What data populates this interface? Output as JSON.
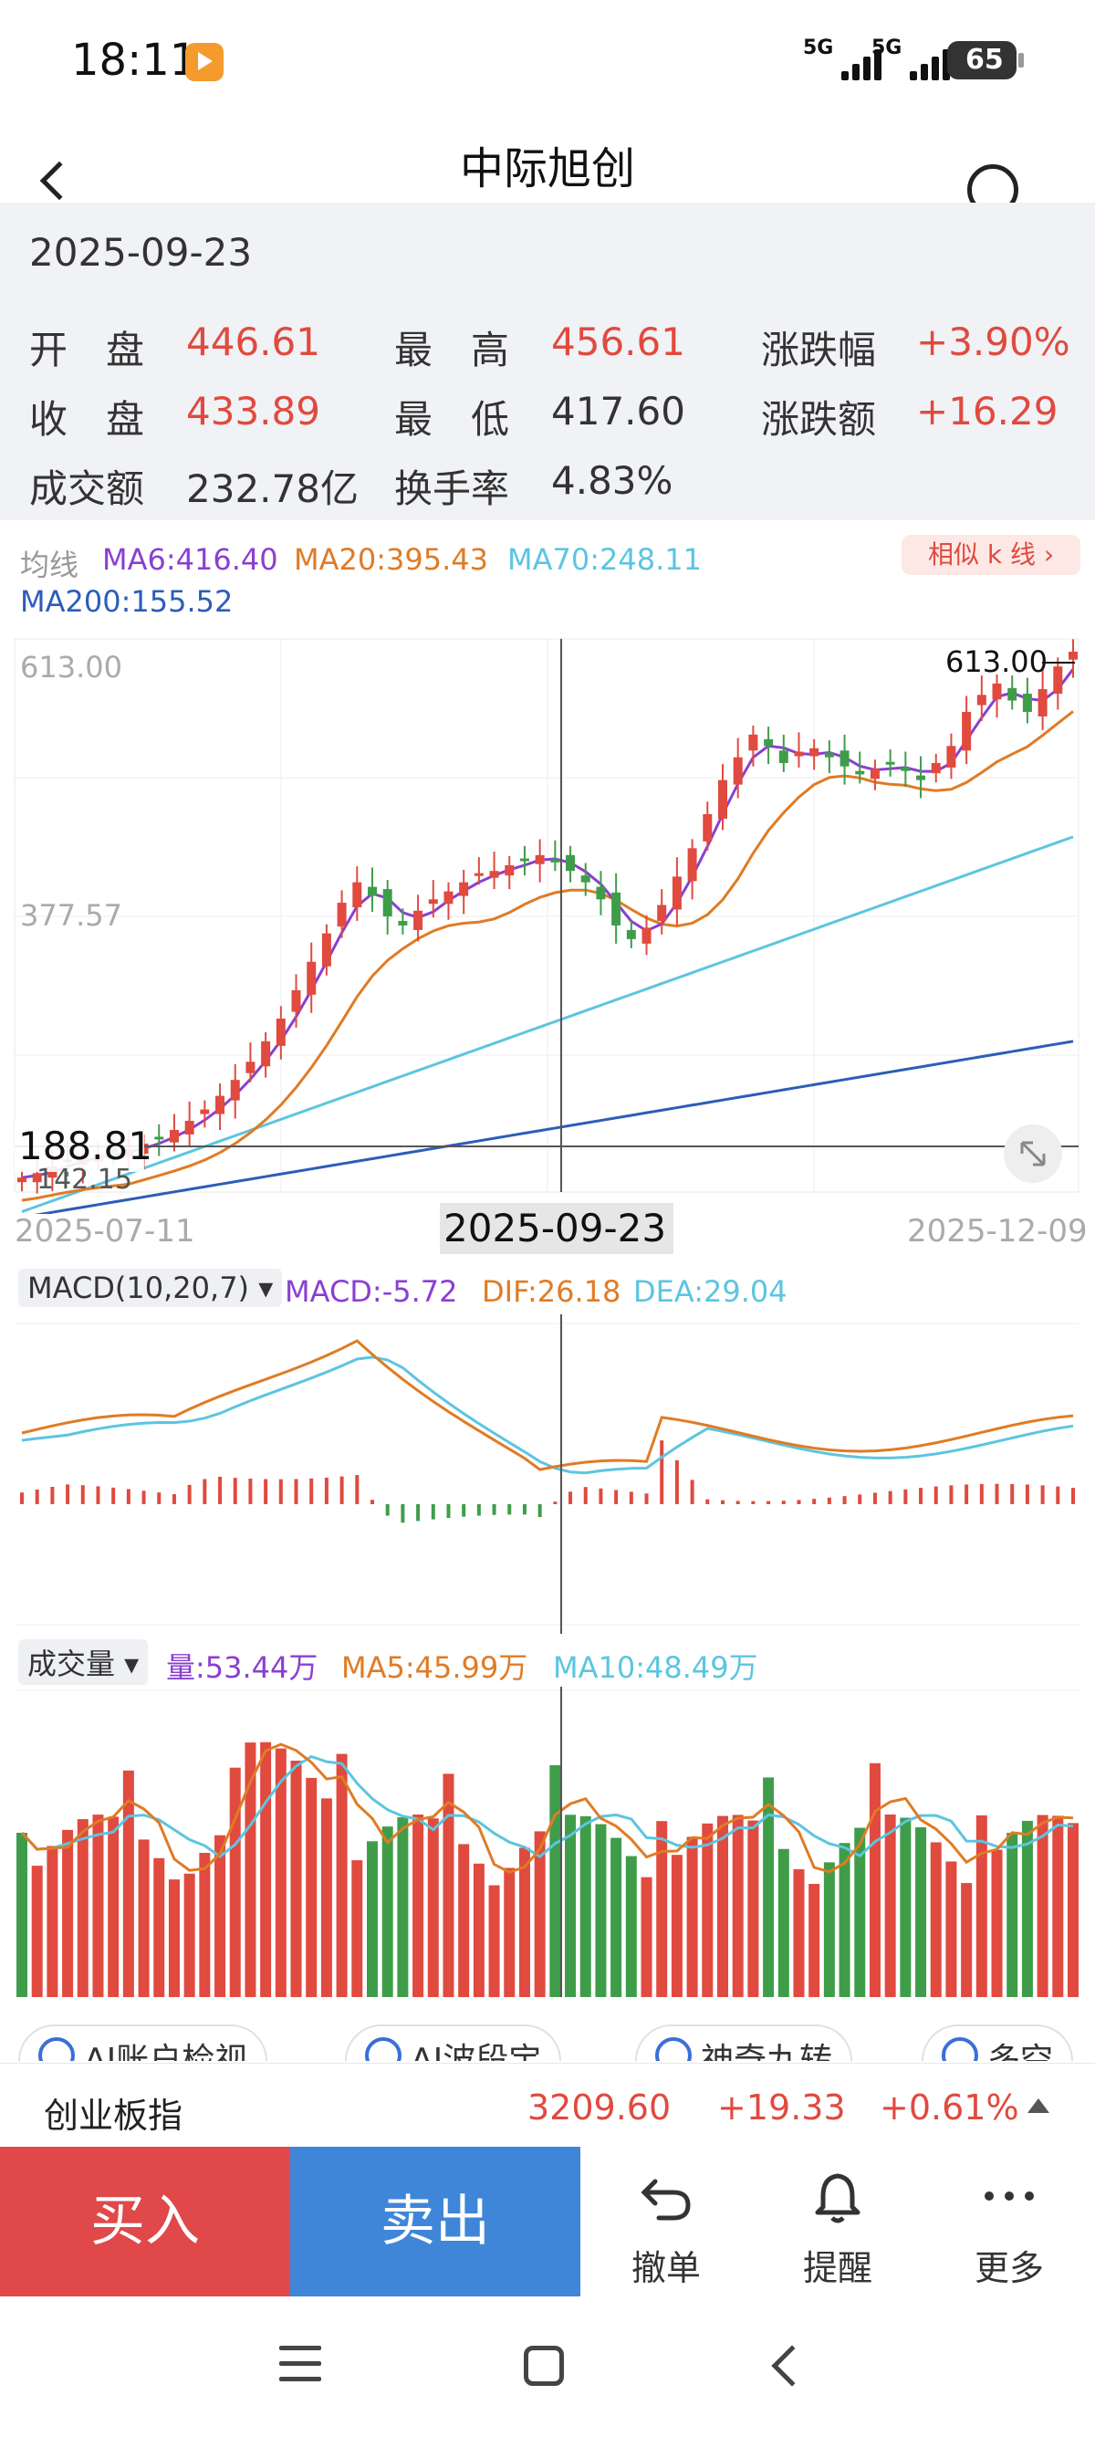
{
  "status_bar": {
    "time": "18:11",
    "signal_1": "5G",
    "signal_2": "5G",
    "battery": "65"
  },
  "nav": {
    "title": "中际旭创",
    "back_icon": "chevron-left-icon",
    "search_icon": "search-icon"
  },
  "info": {
    "date": "2025-09-23",
    "open_label": "开　盘",
    "open_value": "446.61",
    "high_label": "最　高",
    "high_value": "456.61",
    "change_pct_label": "涨跌幅",
    "change_pct_value": "+3.90%",
    "close_label": "收　盘",
    "close_value": "433.89",
    "low_label": "最　低",
    "low_value": "417.60",
    "change_amt_label": "涨跌额",
    "change_amt_value": "+16.29",
    "turnover_label": "成交额",
    "turnover_value": "232.78亿",
    "turnover_rate_label": "换手率",
    "turnover_rate_value": "4.83%"
  },
  "ma_header": {
    "label": "均线",
    "ma6": "MA6:416.40",
    "ma20": "MA20:395.43",
    "ma70": "MA70:248.11",
    "ma200": "MA200:155.52",
    "similar_button": "相似 k 线 ›"
  },
  "kline": {
    "y_top_label": "613.00",
    "y_mid_label": "377.57",
    "high_marker": "613.00",
    "crosshair_price": "188.81",
    "low_marker": "142.15",
    "x_start": "2025-07-11",
    "x_crosshair": "2025-09-23",
    "x_end": "2025-12-09"
  },
  "macd": {
    "selector": "MACD(10,20,7) ▾",
    "macd": "MACD:-5.72",
    "dif": "DIF:26.18",
    "dea": "DEA:29.04"
  },
  "volume": {
    "selector": "成交量 ▾",
    "vol": "量:53.44万",
    "ma5": "MA5:45.99万",
    "ma10": "MA10:48.49万"
  },
  "tools": [
    "AI账户检视",
    "AI波段宝",
    "神奇九转",
    "多空"
  ],
  "index_bar": {
    "name": "创业板指",
    "value": "3209.60",
    "change": "+19.33",
    "change_pct": "+0.61%"
  },
  "bottom": {
    "buy": "买入",
    "sell": "卖出",
    "cancel": "撤单",
    "alert": "提醒",
    "more": "更多"
  },
  "colors": {
    "up": "#e04a3f",
    "down": "#3f9d4a",
    "ma6": "#8a3fd1",
    "ma20": "#e07b24",
    "ma70": "#5cc5e0",
    "ma200": "#2c5db8",
    "buy_bg": "#e0484a",
    "sell_bg": "#3f86d9"
  },
  "chart_data": [
    {
      "type": "candlestick",
      "title": "中际旭创",
      "x_range": [
        "2025-07-11",
        "2025-12-09"
      ],
      "ylim": [
        142.15,
        613.0
      ],
      "y_tick_labels": [
        "613.00",
        "377.57"
      ],
      "close_trend": [
        150,
        154,
        160,
        165,
        168,
        170,
        172,
        175,
        180,
        185,
        192,
        200,
        210,
        222,
        236,
        252,
        270,
        290,
        315,
        340,
        365,
        392,
        410,
        398,
        380,
        372,
        385,
        395,
        402,
        410,
        418,
        420,
        425,
        430,
        433.89,
        428,
        420,
        410,
        395,
        372,
        360,
        370,
        390,
        415,
        440,
        470,
        500,
        520,
        540,
        530,
        515,
        525,
        528,
        520,
        512,
        505,
        510,
        515,
        508,
        500,
        515,
        530,
        560,
        575,
        585,
        570,
        560,
        580,
        600,
        613
      ],
      "series": [
        {
          "name": "MA6",
          "last": 416.4
        },
        {
          "name": "MA20",
          "last": 395.43
        },
        {
          "name": "MA70",
          "last": 248.11
        },
        {
          "name": "MA200",
          "last": 155.52
        }
      ]
    },
    {
      "type": "bar",
      "title": "MACD(10,20,7)",
      "series": [
        {
          "name": "MACD",
          "last": -5.72
        },
        {
          "name": "DIF",
          "last": 26.18
        },
        {
          "name": "DEA",
          "last": 29.04
        }
      ]
    },
    {
      "type": "bar",
      "title": "成交量",
      "series": [
        {
          "name": "量",
          "last": "53.44万"
        },
        {
          "name": "MA5",
          "last": "45.99万"
        },
        {
          "name": "MA10",
          "last": "48.49万"
        }
      ]
    }
  ]
}
